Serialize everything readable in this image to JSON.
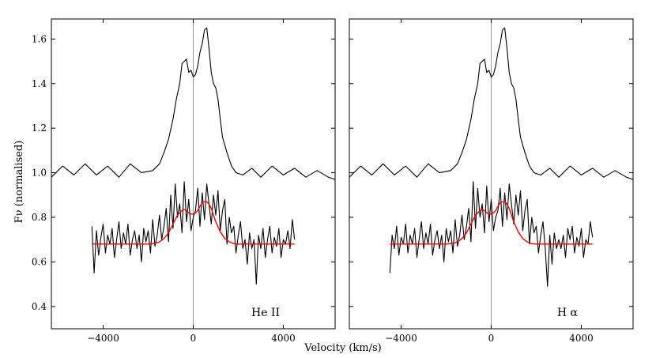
{
  "figure": {
    "ylabel": "Fν (normalised)",
    "xlabel": "Velocity (km/s)"
  },
  "chart_data": [
    {
      "type": "line",
      "panel_label": "He II",
      "xlim": [
        -6300,
        6300
      ],
      "ylim": [
        0.3,
        1.69
      ],
      "xticks": [
        -4000,
        0,
        4000
      ],
      "xtick_labels": [
        "−4000",
        "0",
        "4000"
      ],
      "yticks": [
        0.4,
        0.6,
        0.8,
        1.0,
        1.2,
        1.4,
        1.6
      ],
      "ytick_labels": [
        "0.4",
        "0.6",
        "0.8",
        "1.0",
        "1.2",
        "1.4",
        "1.6"
      ],
      "vline_x": 0,
      "series": [
        {
          "name": "upper spectrum",
          "color": "#000000",
          "x": [
            -6300,
            -5800,
            -5300,
            -4800,
            -4300,
            -3800,
            -3300,
            -2800,
            -2300,
            -1800,
            -1500,
            -1300,
            -1100,
            -900,
            -750,
            -600,
            -500,
            -400,
            -300,
            -200,
            -100,
            0,
            100,
            200,
            300,
            400,
            500,
            600,
            700,
            800,
            900,
            1000,
            1100,
            1200,
            1300,
            1500,
            1700,
            1900,
            2200,
            2600,
            3000,
            3500,
            4000,
            4500,
            5000,
            5500,
            6000,
            6300
          ],
          "y": [
            0.98,
            1.03,
            0.99,
            1.04,
            0.99,
            1.03,
            0.98,
            1.04,
            1.0,
            1.01,
            1.04,
            1.09,
            1.15,
            1.24,
            1.33,
            1.4,
            1.49,
            1.5,
            1.51,
            1.45,
            1.46,
            1.43,
            1.44,
            1.48,
            1.54,
            1.58,
            1.64,
            1.65,
            1.56,
            1.45,
            1.4,
            1.38,
            1.33,
            1.24,
            1.16,
            1.09,
            1.03,
            1.0,
            0.99,
            1.02,
            0.98,
            1.03,
            0.99,
            1.02,
            0.98,
            1.01,
            0.98,
            0.97
          ]
        },
        {
          "name": "lower spectrum",
          "color": "#000000",
          "x": [
            -4500,
            -4400,
            -4300,
            -4200,
            -4100,
            -4000,
            -3900,
            -3800,
            -3700,
            -3600,
            -3500,
            -3400,
            -3300,
            -3200,
            -3100,
            -3000,
            -2900,
            -2800,
            -2700,
            -2600,
            -2500,
            -2400,
            -2300,
            -2200,
            -2100,
            -2000,
            -1900,
            -1800,
            -1700,
            -1600,
            -1500,
            -1400,
            -1300,
            -1200,
            -1100,
            -1000,
            -900,
            -800,
            -700,
            -600,
            -500,
            -400,
            -300,
            -200,
            -100,
            0,
            100,
            200,
            300,
            400,
            500,
            600,
            700,
            800,
            900,
            1000,
            1100,
            1200,
            1300,
            1400,
            1500,
            1600,
            1700,
            1800,
            1900,
            2000,
            2100,
            2200,
            2300,
            2400,
            2500,
            2600,
            2700,
            2800,
            2900,
            3000,
            3100,
            3200,
            3300,
            3400,
            3500,
            3600,
            3700,
            3800,
            3900,
            4000,
            4100,
            4200,
            4300,
            4400,
            4500
          ],
          "y": [
            0.76,
            0.55,
            0.74,
            0.63,
            0.71,
            0.77,
            0.64,
            0.72,
            0.68,
            0.75,
            0.62,
            0.7,
            0.78,
            0.66,
            0.73,
            0.68,
            0.77,
            0.63,
            0.7,
            0.74,
            0.66,
            0.72,
            0.6,
            0.75,
            0.69,
            0.74,
            0.64,
            0.79,
            0.67,
            0.72,
            0.81,
            0.7,
            0.76,
            0.84,
            0.69,
            0.9,
            0.75,
            0.95,
            0.8,
            0.86,
            0.73,
            0.96,
            0.78,
            0.88,
            0.74,
            0.8,
            0.83,
            0.93,
            0.76,
            0.91,
            0.79,
            0.95,
            0.86,
            0.77,
            0.9,
            0.81,
            0.92,
            0.74,
            0.83,
            0.88,
            0.68,
            0.8,
            0.73,
            0.76,
            0.64,
            0.72,
            0.78,
            0.66,
            0.7,
            0.59,
            0.73,
            0.66,
            0.7,
            0.5,
            0.72,
            0.66,
            0.75,
            0.62,
            0.7,
            0.76,
            0.64,
            0.71,
            0.67,
            0.75,
            0.62,
            0.7,
            0.68,
            0.74,
            0.66,
            0.79,
            0.7
          ]
        },
        {
          "name": "model fit",
          "color": "#ff0000",
          "x": [
            -4500,
            -3000,
            -2000,
            -1700,
            -1500,
            -1300,
            -1100,
            -900,
            -700,
            -500,
            -400,
            -300,
            -200,
            -100,
            0,
            100,
            200,
            300,
            400,
            500,
            600,
            700,
            800,
            900,
            1000,
            1200,
            1400,
            1600,
            1800,
            2000,
            2300,
            3000,
            4500
          ],
          "y": [
            0.68,
            0.68,
            0.68,
            0.683,
            0.69,
            0.705,
            0.73,
            0.77,
            0.81,
            0.83,
            0.835,
            0.83,
            0.82,
            0.815,
            0.815,
            0.82,
            0.83,
            0.85,
            0.865,
            0.87,
            0.87,
            0.86,
            0.84,
            0.81,
            0.78,
            0.735,
            0.705,
            0.69,
            0.682,
            0.68,
            0.68,
            0.68,
            0.68
          ]
        }
      ]
    },
    {
      "type": "line",
      "panel_label": "H α",
      "xlim": [
        -6300,
        6300
      ],
      "ylim": [
        0.3,
        1.69
      ],
      "xticks": [
        -4000,
        0,
        4000
      ],
      "xtick_labels": [
        "−4000",
        "0",
        "4000"
      ],
      "yticks": [
        0.4,
        0.6,
        0.8,
        1.0,
        1.2,
        1.4,
        1.6
      ],
      "ytick_labels": [
        "0.4",
        "0.6",
        "0.8",
        "1.0",
        "1.2",
        "1.4",
        "1.6"
      ],
      "vline_x": 0,
      "series": [
        {
          "name": "upper spectrum",
          "color": "#000000",
          "x": [
            -6300,
            -5800,
            -5300,
            -4800,
            -4300,
            -3800,
            -3300,
            -2800,
            -2300,
            -1800,
            -1500,
            -1300,
            -1100,
            -900,
            -750,
            -600,
            -500,
            -400,
            -300,
            -200,
            -100,
            0,
            100,
            200,
            300,
            400,
            500,
            600,
            700,
            800,
            900,
            1000,
            1100,
            1200,
            1300,
            1500,
            1700,
            1900,
            2200,
            2600,
            3000,
            3500,
            4000,
            4500,
            5000,
            5500,
            6000,
            6300
          ],
          "y": [
            0.98,
            1.03,
            0.99,
            1.04,
            0.99,
            1.03,
            0.98,
            1.04,
            1.0,
            1.01,
            1.04,
            1.09,
            1.15,
            1.24,
            1.33,
            1.4,
            1.49,
            1.5,
            1.51,
            1.45,
            1.46,
            1.43,
            1.44,
            1.48,
            1.54,
            1.58,
            1.64,
            1.65,
            1.56,
            1.45,
            1.4,
            1.38,
            1.33,
            1.24,
            1.16,
            1.09,
            1.03,
            1.0,
            0.99,
            1.02,
            0.98,
            1.03,
            0.99,
            1.02,
            0.98,
            1.01,
            0.98,
            0.97
          ]
        },
        {
          "name": "lower spectrum",
          "color": "#000000",
          "x": [
            -4500,
            -4400,
            -4300,
            -4200,
            -4100,
            -4000,
            -3900,
            -3800,
            -3700,
            -3600,
            -3500,
            -3400,
            -3300,
            -3200,
            -3100,
            -3000,
            -2900,
            -2800,
            -2700,
            -2600,
            -2500,
            -2400,
            -2300,
            -2200,
            -2100,
            -2000,
            -1900,
            -1800,
            -1700,
            -1600,
            -1500,
            -1400,
            -1300,
            -1200,
            -1100,
            -1000,
            -900,
            -800,
            -700,
            -600,
            -500,
            -400,
            -300,
            -200,
            -100,
            0,
            100,
            200,
            300,
            400,
            500,
            600,
            700,
            800,
            900,
            1000,
            1100,
            1200,
            1300,
            1400,
            1500,
            1600,
            1700,
            1800,
            1900,
            2000,
            2100,
            2200,
            2300,
            2400,
            2500,
            2600,
            2700,
            2800,
            2900,
            3000,
            3100,
            3200,
            3300,
            3400,
            3500,
            3600,
            3700,
            3800,
            3900,
            4000,
            4100,
            4200,
            4300,
            4400,
            4500
          ],
          "y": [
            0.55,
            0.72,
            0.66,
            0.76,
            0.63,
            0.71,
            0.68,
            0.77,
            0.64,
            0.72,
            0.68,
            0.75,
            0.62,
            0.7,
            0.78,
            0.66,
            0.73,
            0.68,
            0.77,
            0.63,
            0.7,
            0.74,
            0.66,
            0.72,
            0.6,
            0.75,
            0.69,
            0.74,
            0.64,
            0.79,
            0.67,
            0.72,
            0.81,
            0.7,
            0.76,
            0.84,
            0.69,
            0.96,
            0.75,
            0.93,
            0.8,
            0.86,
            0.73,
            0.94,
            0.78,
            0.88,
            0.74,
            0.8,
            0.83,
            0.93,
            0.76,
            0.91,
            0.79,
            0.95,
            0.86,
            0.77,
            0.9,
            0.81,
            0.92,
            0.74,
            0.83,
            0.88,
            0.68,
            0.8,
            0.73,
            0.76,
            0.64,
            0.72,
            0.78,
            0.66,
            0.49,
            0.72,
            0.59,
            0.73,
            0.66,
            0.7,
            0.66,
            0.72,
            0.62,
            0.75,
            0.7,
            0.76,
            0.64,
            0.71,
            0.67,
            0.75,
            0.62,
            0.7,
            0.68,
            0.78,
            0.71
          ]
        },
        {
          "name": "model fit",
          "color": "#ff0000",
          "x": [
            -4500,
            -3000,
            -2000,
            -1700,
            -1500,
            -1300,
            -1100,
            -900,
            -700,
            -500,
            -400,
            -300,
            -200,
            -100,
            0,
            100,
            200,
            300,
            400,
            500,
            600,
            700,
            800,
            900,
            1000,
            1200,
            1400,
            1600,
            1800,
            2000,
            2300,
            3000,
            4500
          ],
          "y": [
            0.68,
            0.68,
            0.68,
            0.683,
            0.69,
            0.705,
            0.73,
            0.77,
            0.81,
            0.83,
            0.835,
            0.83,
            0.82,
            0.815,
            0.815,
            0.82,
            0.83,
            0.85,
            0.865,
            0.87,
            0.87,
            0.86,
            0.84,
            0.81,
            0.78,
            0.735,
            0.705,
            0.69,
            0.682,
            0.68,
            0.68,
            0.68,
            0.68
          ]
        }
      ]
    }
  ]
}
